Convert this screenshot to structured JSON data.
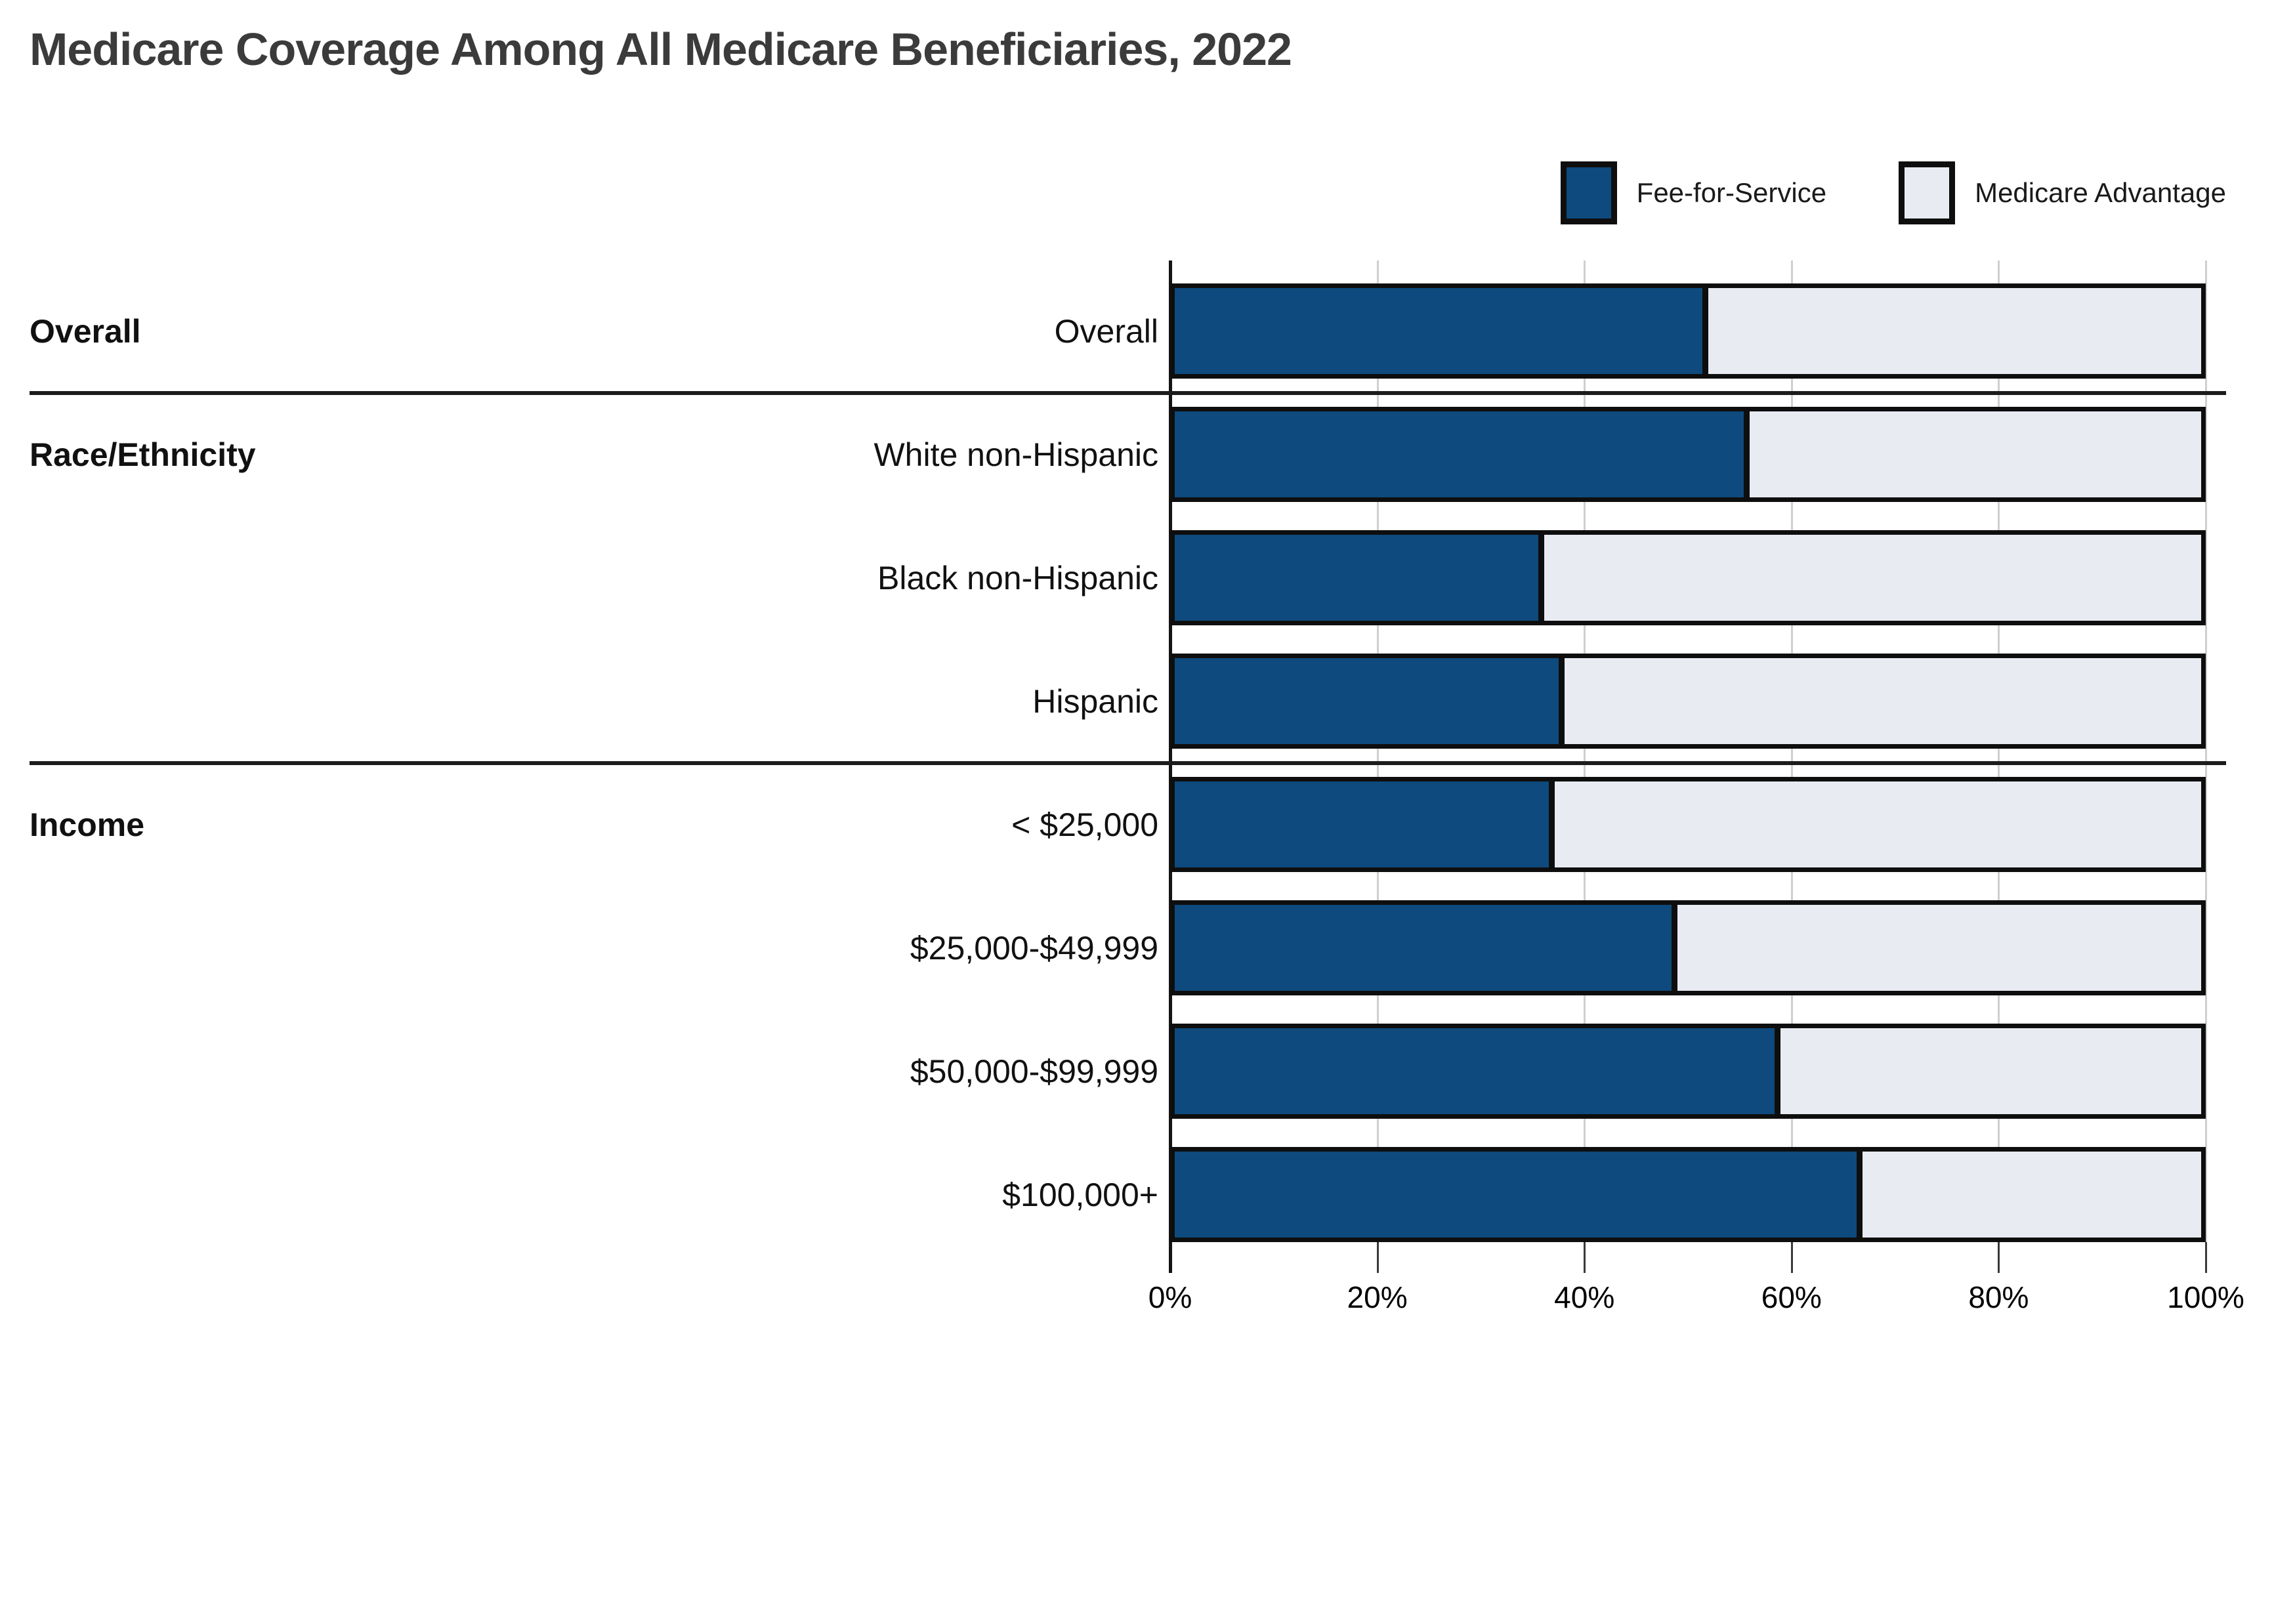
{
  "title": "Medicare Coverage Among All Medicare Beneficiaries, 2022",
  "legend": [
    {
      "label": "Fee-for-Service",
      "color": "#0e4a7d"
    },
    {
      "label": "Medicare Advantage",
      "color": "#e8ebf2"
    }
  ],
  "colors": {
    "fee_for_service": "#0e4a7d",
    "medicare_advantage": "#e8ebf2",
    "bar_border": "#0e0e0e",
    "gridline": "#cfcfcf",
    "title_text": "#3b3b3b"
  },
  "axis": {
    "min": 0,
    "max": 100,
    "tick_values": [
      0,
      20,
      40,
      60,
      80,
      100
    ],
    "tick_labels": [
      "0%",
      "20%",
      "40%",
      "60%",
      "80%",
      "100%"
    ]
  },
  "chart_data": {
    "type": "bar",
    "orientation": "horizontal",
    "stacked": true,
    "title": "Medicare Coverage Among All Medicare Beneficiaries, 2022",
    "categories": [
      "Overall",
      "White non-Hispanic",
      "Black non-Hispanic",
      "Hispanic",
      "< $25,000",
      "$25,000-$49,999",
      "$50,000-$99,999",
      "$100,000+"
    ],
    "series": [
      {
        "name": "Fee-for-Service",
        "color": "#0e4a7d",
        "values": [
          52,
          56,
          36,
          38,
          37,
          49,
          59,
          67
        ]
      },
      {
        "name": "Medicare Advantage",
        "color": "#e8ebf2",
        "values": [
          48,
          44,
          64,
          62,
          63,
          51,
          41,
          33
        ]
      }
    ],
    "sections": [
      {
        "label": "Overall",
        "rows": [
          0
        ]
      },
      {
        "label": "Race/Ethnicity",
        "rows": [
          1,
          2,
          3
        ]
      },
      {
        "label": "Income",
        "rows": [
          4,
          5,
          6,
          7
        ]
      }
    ],
    "xlim": [
      0,
      100
    ],
    "x_tick_labels": [
      "0%",
      "20%",
      "40%",
      "60%",
      "80%",
      "100%"
    ],
    "legend_position": "top-right",
    "grid": "vertical-gridlines"
  }
}
